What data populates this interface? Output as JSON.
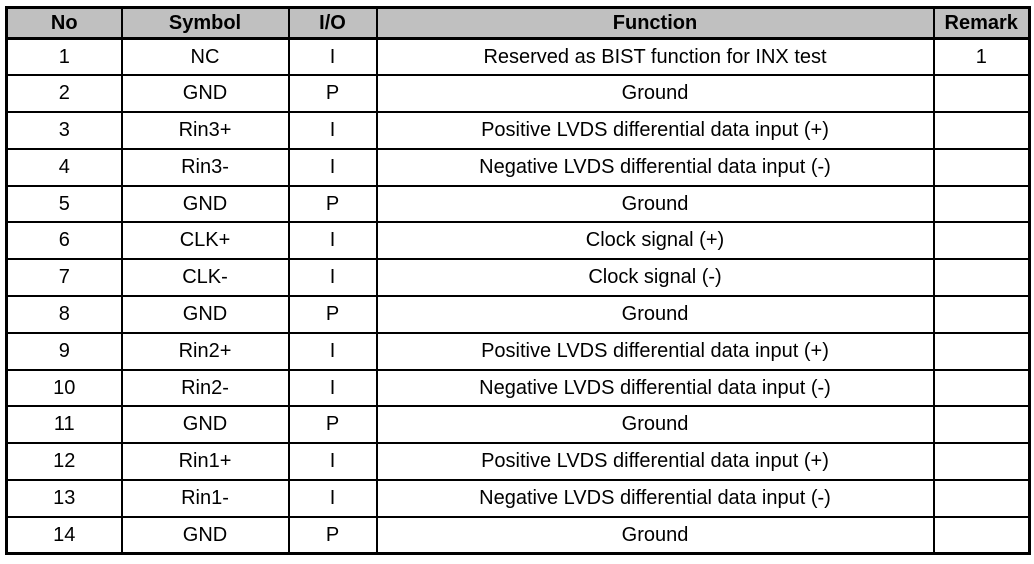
{
  "colors": {
    "header_background": "#c0c0c0",
    "border": "#000000",
    "text": "#000000",
    "page_background": "#ffffff"
  },
  "table": {
    "headers": [
      "No",
      "Symbol",
      "I/O",
      "Function",
      "Remark"
    ],
    "rows": [
      {
        "no": "1",
        "symbol": "NC",
        "io": "I",
        "function": "Reserved as BIST function for INX test",
        "remark": "1"
      },
      {
        "no": "2",
        "symbol": "GND",
        "io": "P",
        "function": "Ground",
        "remark": ""
      },
      {
        "no": "3",
        "symbol": "Rin3+",
        "io": "I",
        "function": "Positive LVDS differential data input (+)",
        "remark": ""
      },
      {
        "no": "4",
        "symbol": "Rin3-",
        "io": "I",
        "function": "Negative LVDS differential data input (-)",
        "remark": ""
      },
      {
        "no": "5",
        "symbol": "GND",
        "io": "P",
        "function": "Ground",
        "remark": ""
      },
      {
        "no": "6",
        "symbol": "CLK+",
        "io": "I",
        "function": "Clock signal (+)",
        "remark": ""
      },
      {
        "no": "7",
        "symbol": "CLK-",
        "io": "I",
        "function": "Clock signal (-)",
        "remark": ""
      },
      {
        "no": "8",
        "symbol": "GND",
        "io": "P",
        "function": "Ground",
        "remark": ""
      },
      {
        "no": "9",
        "symbol": "Rin2+",
        "io": "I",
        "function": "Positive LVDS differential data input (+)",
        "remark": ""
      },
      {
        "no": "10",
        "symbol": "Rin2-",
        "io": "I",
        "function": "Negative LVDS differential data input (-)",
        "remark": ""
      },
      {
        "no": "11",
        "symbol": "GND",
        "io": "P",
        "function": "Ground",
        "remark": ""
      },
      {
        "no": "12",
        "symbol": "Rin1+",
        "io": "I",
        "function": "Positive LVDS differential data input (+)",
        "remark": ""
      },
      {
        "no": "13",
        "symbol": "Rin1-",
        "io": "I",
        "function": "Negative LVDS differential data input (-)",
        "remark": ""
      },
      {
        "no": "14",
        "symbol": "GND",
        "io": "P",
        "function": "Ground",
        "remark": ""
      }
    ]
  }
}
